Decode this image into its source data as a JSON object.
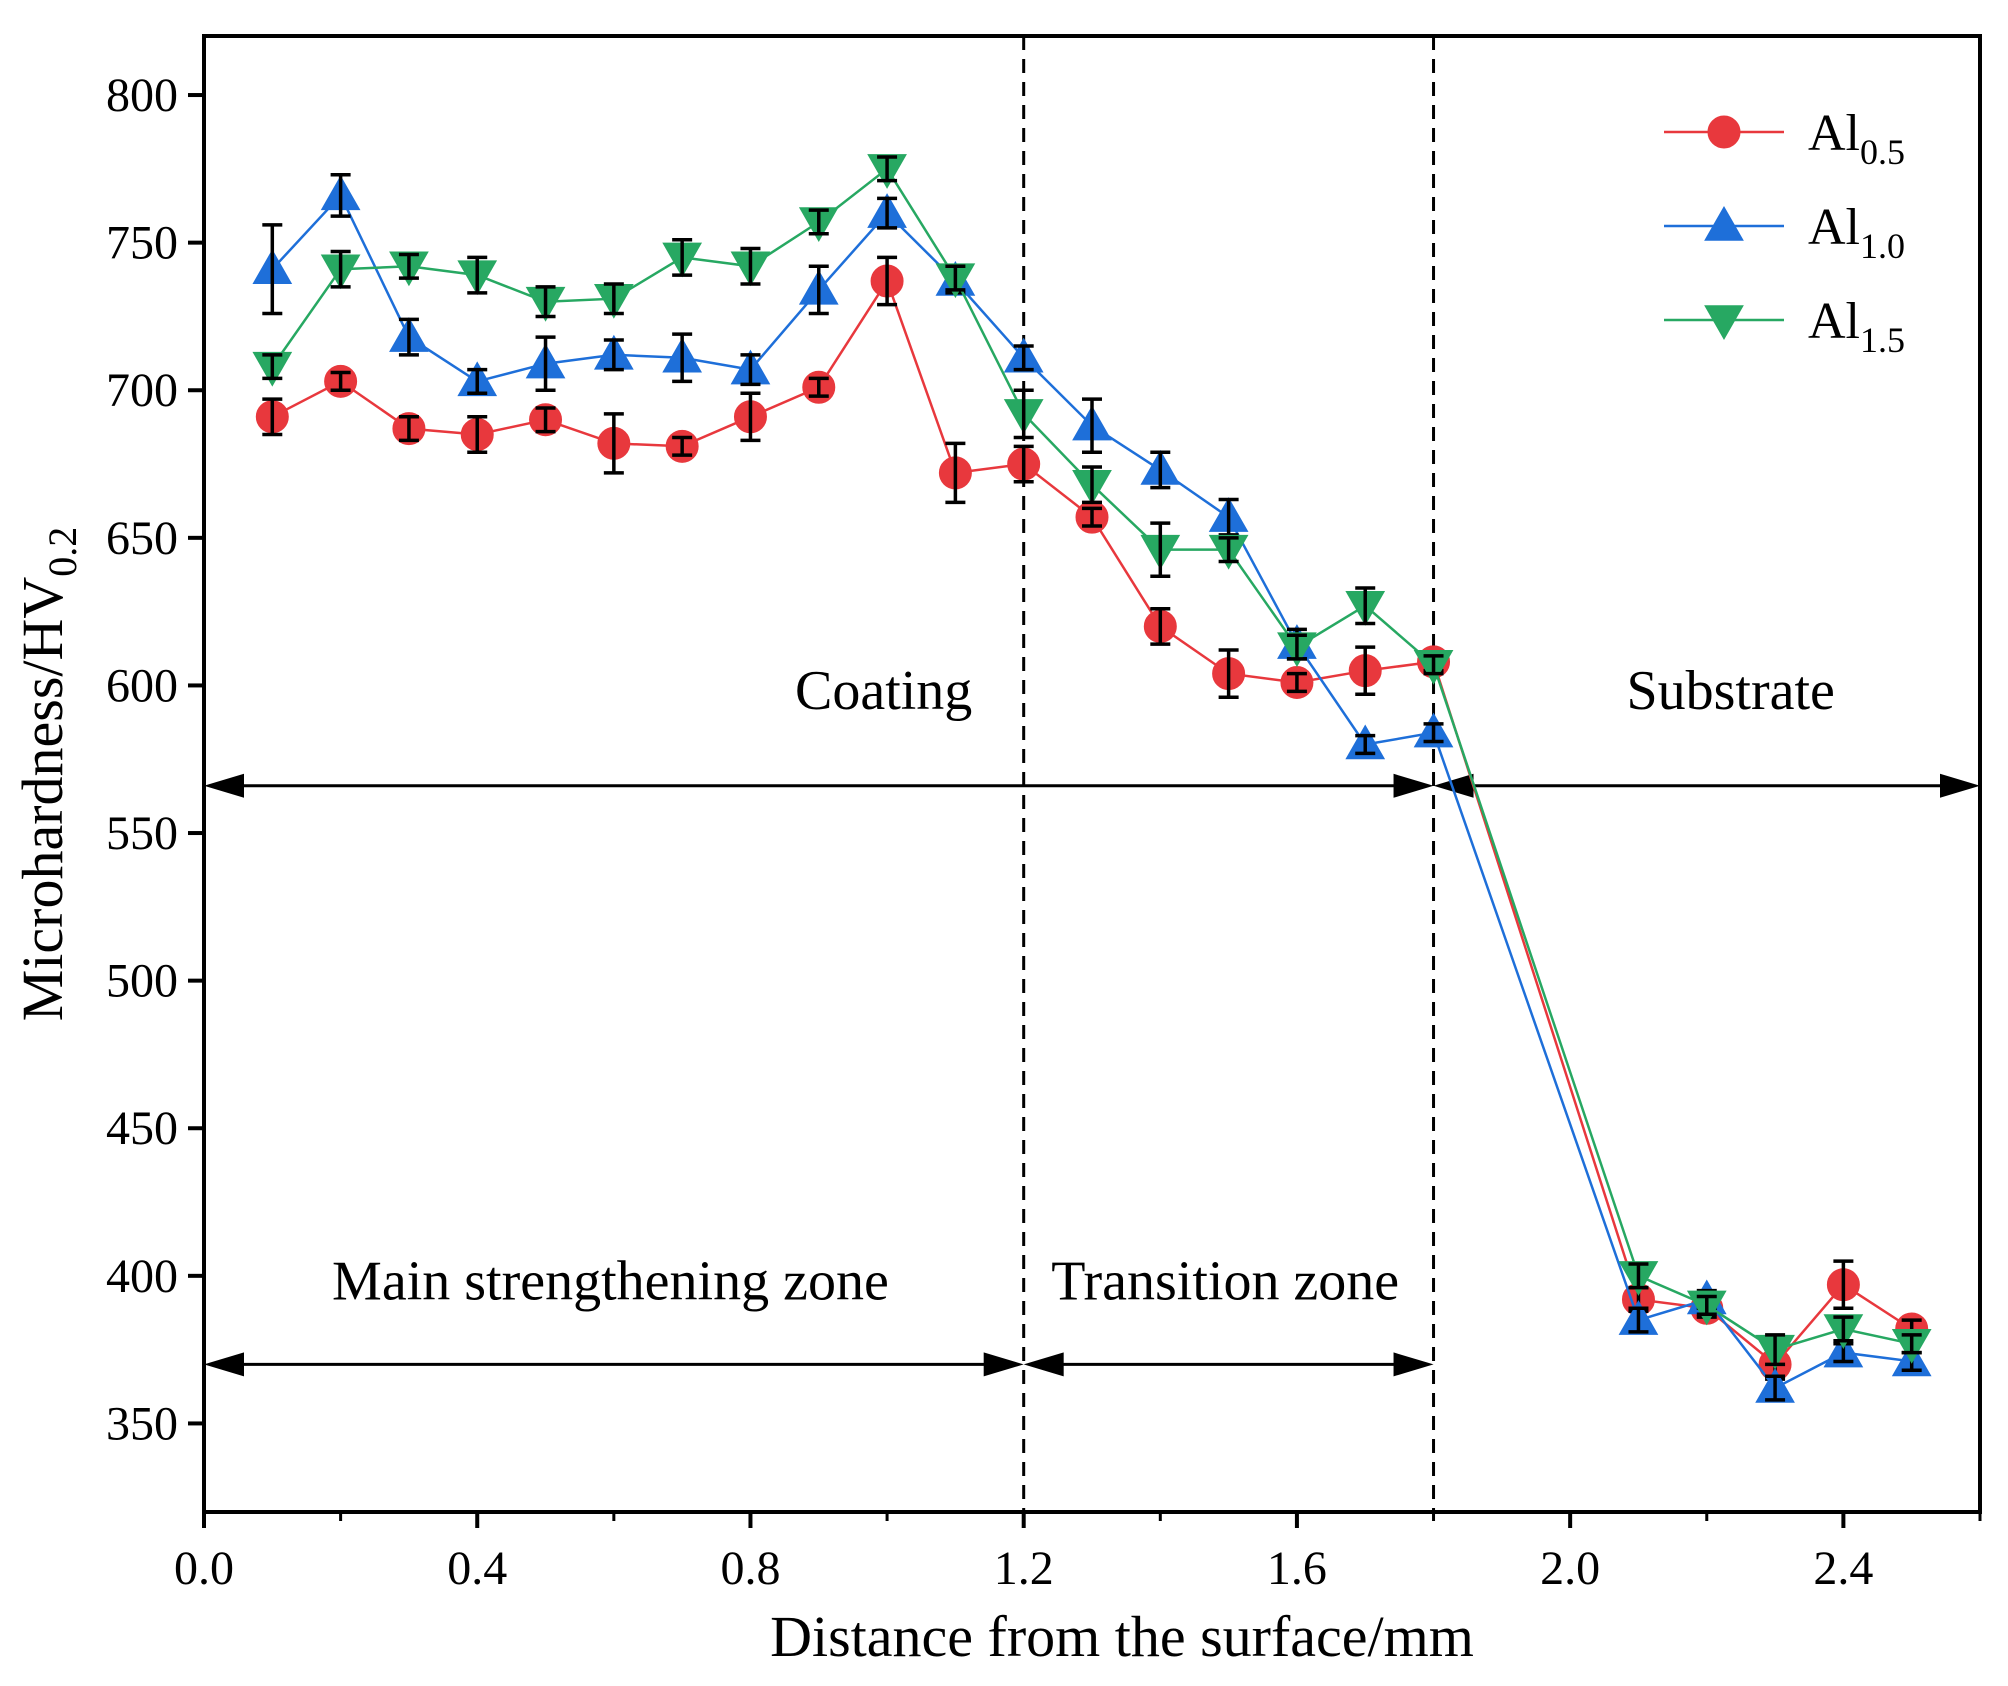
{
  "chart_data": {
    "type": "line",
    "title": "",
    "xlabel": "Distance from the surface/mm",
    "ylabel": {
      "main": "Microhardness/HV",
      "sub": "0.2"
    },
    "xlim": [
      0,
      2.6
    ],
    "ylim": [
      320,
      820
    ],
    "xticks": [
      0.0,
      0.4,
      0.8,
      1.2,
      1.6,
      2.0,
      2.4
    ],
    "xtick_labels": [
      "0.0",
      "0.4",
      "0.8",
      "1.2",
      "1.6",
      "2.0",
      "2.4"
    ],
    "yticks": [
      350,
      400,
      450,
      500,
      550,
      600,
      650,
      700,
      750,
      800
    ],
    "ytick_labels": [
      "350",
      "400",
      "450",
      "500",
      "550",
      "600",
      "650",
      "700",
      "750",
      "800"
    ],
    "legend_position": "top-right",
    "series": [
      {
        "name": "Al0.5",
        "label_main": "Al",
        "label_sub": "0.5",
        "marker": "circle",
        "color": "#E8383D",
        "x": [
          0.1,
          0.2,
          0.3,
          0.4,
          0.5,
          0.6,
          0.7,
          0.8,
          0.9,
          1.0,
          1.1,
          1.2,
          1.3,
          1.4,
          1.5,
          1.6,
          1.7,
          1.8,
          2.1,
          2.2,
          2.3,
          2.4,
          2.5
        ],
        "y": [
          691,
          703,
          687,
          685,
          690,
          682,
          681,
          691,
          701,
          737,
          672,
          675,
          657,
          620,
          604,
          601,
          605,
          608,
          392,
          389,
          370,
          397,
          382
        ],
        "err": [
          6,
          3,
          4,
          6,
          4,
          10,
          3,
          8,
          3,
          8,
          10,
          6,
          3,
          6,
          8,
          3,
          8,
          3,
          4,
          3,
          5,
          8,
          3
        ]
      },
      {
        "name": "Al1.0",
        "label_main": "Al",
        "label_sub": "1.0",
        "marker": "triangle-up",
        "color": "#1E6FD9",
        "x": [
          0.1,
          0.2,
          0.3,
          0.4,
          0.5,
          0.6,
          0.7,
          0.8,
          0.9,
          1.0,
          1.1,
          1.2,
          1.3,
          1.4,
          1.5,
          1.6,
          1.7,
          1.8,
          2.1,
          2.2,
          2.3,
          2.4,
          2.5
        ],
        "y": [
          741,
          766,
          718,
          703,
          709,
          712,
          711,
          707,
          734,
          760,
          737,
          711,
          688,
          673,
          657,
          614,
          580,
          584,
          385,
          392,
          362,
          374,
          371
        ],
        "err": [
          15,
          7,
          6,
          4,
          9,
          5,
          8,
          5,
          8,
          5,
          4,
          4,
          9,
          6,
          6,
          5,
          3,
          3,
          4,
          3,
          4,
          3,
          3
        ]
      },
      {
        "name": "Al1.5",
        "label_main": "Al",
        "label_sub": "1.5",
        "marker": "triangle-down",
        "color": "#27A862",
        "x": [
          0.1,
          0.2,
          0.3,
          0.4,
          0.5,
          0.6,
          0.7,
          0.8,
          0.9,
          1.0,
          1.1,
          1.2,
          1.3,
          1.4,
          1.5,
          1.6,
          1.7,
          1.8,
          2.1,
          2.2,
          2.3,
          2.4,
          2.5
        ],
        "y": [
          708,
          741,
          742,
          739,
          730,
          731,
          745,
          742,
          757,
          775,
          738,
          692,
          668,
          646,
          646,
          613,
          627,
          607,
          400,
          390,
          375,
          382,
          377
        ],
        "err": [
          4,
          6,
          4,
          6,
          5,
          5,
          6,
          6,
          4,
          4,
          4,
          8,
          6,
          9,
          4,
          4,
          6,
          3,
          4,
          3,
          5,
          4,
          3
        ]
      }
    ],
    "vlines": [
      1.2,
      1.8
    ],
    "annotations": [
      {
        "id": "coating",
        "text": "Coating",
        "x": 0.995,
        "y": 592
      },
      {
        "id": "substrate",
        "text": "Substrate",
        "x": 2.235,
        "y": 592
      },
      {
        "id": "main-zone",
        "text": "Main strengthening zone",
        "x": 0.595,
        "y": 392
      },
      {
        "id": "transition-zone",
        "text": "Transition zone",
        "x": 1.495,
        "y": 392
      }
    ],
    "arrows": [
      {
        "id": "coating-arrow",
        "x1": 0.0,
        "x2": 1.8,
        "y": 566
      },
      {
        "id": "substrate-arrow",
        "x1": 1.8,
        "x2": 2.6,
        "y": 566
      },
      {
        "id": "main-zone-arrow",
        "x1": 0.0,
        "x2": 1.2,
        "y": 370
      },
      {
        "id": "transition-zone-arrow",
        "x1": 1.2,
        "x2": 1.8,
        "y": 370
      }
    ]
  }
}
